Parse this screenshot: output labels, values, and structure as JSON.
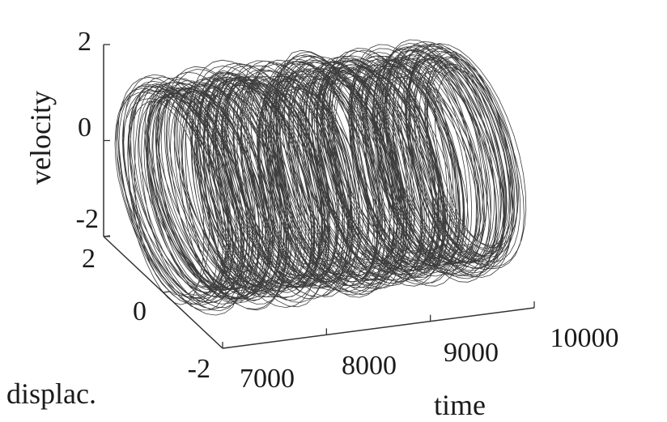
{
  "chart_data": {
    "type": "line",
    "projection": "3d",
    "title": "",
    "xlabel": "time",
    "ylabel": "displac.",
    "zlabel": "velocity",
    "xlim": [
      7000,
      10000
    ],
    "ylim": [
      -2,
      2
    ],
    "zlim": [
      -2,
      2
    ],
    "x_ticks": [
      "7000",
      "8000",
      "9000",
      "10000"
    ],
    "y_ticks": [
      "-2",
      "0",
      "2"
    ],
    "z_ticks": [
      "-2",
      "0",
      "2"
    ],
    "grid": false,
    "series": [
      {
        "description": "phase trajectory (displacement, velocity) over time",
        "color": "#1a1a1a",
        "x_range": [
          7000,
          10000
        ],
        "displacement_amplitude_range": [
          1.1,
          2.2
        ],
        "velocity_amplitude_range": [
          1.6,
          2.3
        ]
      }
    ]
  }
}
